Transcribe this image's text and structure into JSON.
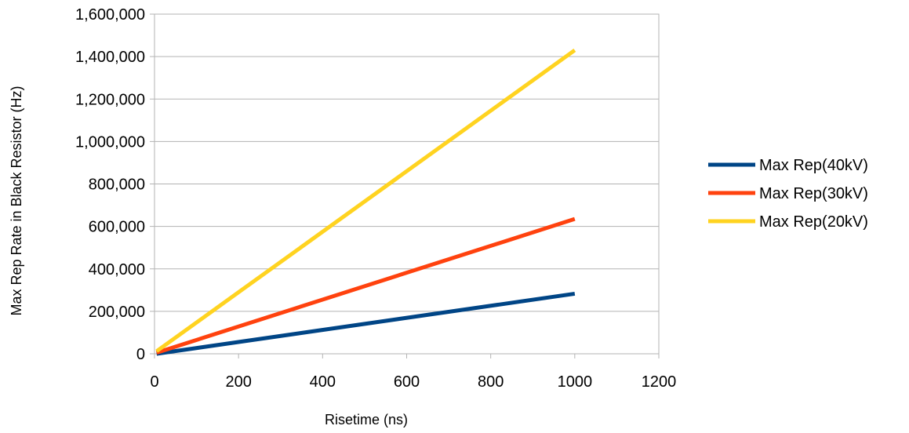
{
  "chart_data": {
    "type": "line",
    "title": "",
    "xlabel": "Risetime (ns)",
    "ylabel": "Max Rep Rate in Black Resistor (Hz)",
    "xlim": [
      0,
      1200
    ],
    "ylim": [
      0,
      1600000
    ],
    "x_ticks": [
      0,
      200,
      400,
      600,
      800,
      1000,
      1200
    ],
    "x_tick_labels": [
      "0",
      "200",
      "400",
      "600",
      "800",
      "1000",
      "1200"
    ],
    "y_ticks": [
      0,
      200000,
      400000,
      600000,
      800000,
      1000000,
      1200000,
      1400000,
      1600000
    ],
    "y_tick_labels": [
      "0",
      "200,000",
      "400,000",
      "600,000",
      "800,000",
      "1,000,000",
      "1,200,000",
      "1,400,000",
      "1,600,000"
    ],
    "grid": "horizontal",
    "legend_position": "right",
    "series": [
      {
        "name": "Max Rep(40kV)",
        "color": "#004586",
        "x": [
          5,
          1000
        ],
        "y": [
          0,
          283000
        ]
      },
      {
        "name": "Max Rep(30kV)",
        "color": "#ff420e",
        "x": [
          5,
          1000
        ],
        "y": [
          5000,
          635000
        ]
      },
      {
        "name": "Max Rep(20kV)",
        "color": "#ffd320",
        "x": [
          5,
          1000
        ],
        "y": [
          12000,
          1430000
        ]
      }
    ]
  }
}
